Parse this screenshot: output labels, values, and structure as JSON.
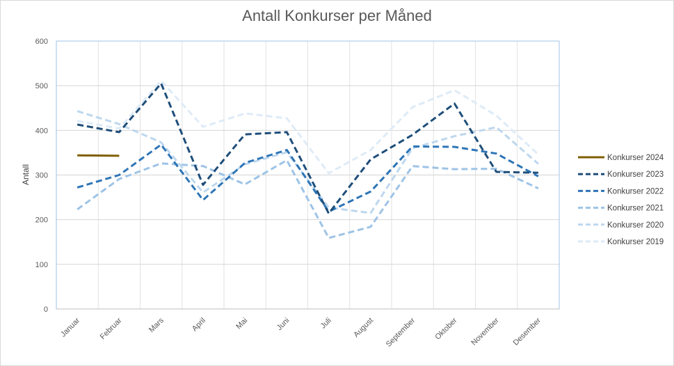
{
  "chart_data": {
    "type": "line",
    "title": "Antall Konkurser per Måned",
    "ylabel": "Antall",
    "xlabel": "",
    "ylim": [
      0,
      600
    ],
    "yticks": [
      0,
      100,
      200,
      300,
      400,
      500,
      600
    ],
    "categories": [
      "Januar",
      "Februar",
      "Mars",
      "April",
      "Mai",
      "Juni",
      "Juli",
      "August",
      "September",
      "Oktober",
      "November",
      "Desember"
    ],
    "grid": true,
    "legend_position": "right",
    "series": [
      {
        "name": "Konkurser 2024",
        "color": "#7f5f00",
        "dash": "solid",
        "values": [
          344,
          343,
          null,
          null,
          null,
          null,
          null,
          null,
          null,
          null,
          null,
          null
        ]
      },
      {
        "name": "Konkurser 2023",
        "color": "#1f4e79",
        "dash": "dashed",
        "values": [
          413,
          396,
          505,
          278,
          391,
          396,
          214,
          335,
          390,
          460,
          307,
          305
        ]
      },
      {
        "name": "Konkurser 2022",
        "color": "#2e75b6",
        "dash": "dashed",
        "values": [
          272,
          300,
          368,
          244,
          327,
          356,
          218,
          263,
          364,
          363,
          348,
          297
        ]
      },
      {
        "name": "Konkurser 2021",
        "color": "#9dc3e6",
        "dash": "dashed",
        "values": [
          223,
          291,
          326,
          320,
          279,
          333,
          159,
          184,
          320,
          313,
          314,
          270
        ]
      },
      {
        "name": "Konkurser 2020",
        "color": "#bdd7ee",
        "dash": "dashed",
        "values": [
          443,
          414,
          373,
          261,
          324,
          351,
          227,
          215,
          360,
          387,
          407,
          325
        ]
      },
      {
        "name": "Konkurser 2019",
        "color": "#deebf7",
        "dash": "dashed",
        "values": [
          421,
          404,
          511,
          408,
          438,
          427,
          304,
          356,
          452,
          490,
          433,
          346
        ]
      }
    ]
  }
}
